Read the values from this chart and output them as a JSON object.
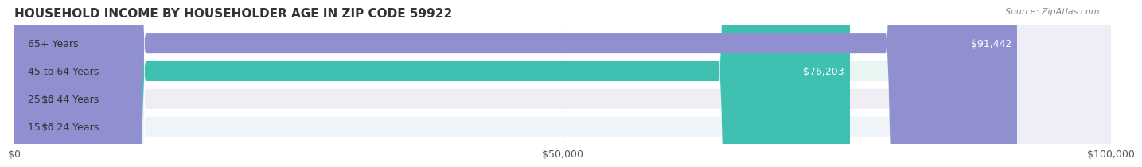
{
  "title": "HOUSEHOLD INCOME BY HOUSEHOLDER AGE IN ZIP CODE 59922",
  "source_text": "Source: ZipAtlas.com",
  "categories": [
    "15 to 24 Years",
    "25 to 44 Years",
    "45 to 64 Years",
    "65+ Years"
  ],
  "values": [
    0,
    0,
    76203,
    91442
  ],
  "labels": [
    "$0",
    "$0",
    "$76,203",
    "$91,442"
  ],
  "bar_colors": [
    "#7ec8e3",
    "#c9a0dc",
    "#40c0b0",
    "#9090d0"
  ],
  "bar_bg_colors": [
    "#eef4f8",
    "#f0edf5",
    "#e8f5f3",
    "#edeef8"
  ],
  "xlim": [
    0,
    100000
  ],
  "xticks": [
    0,
    50000,
    100000
  ],
  "xticklabels": [
    "$0",
    "$50,000",
    "$100,000"
  ],
  "title_fontsize": 11,
  "source_fontsize": 8,
  "label_fontsize": 9,
  "tick_fontsize": 9,
  "category_fontsize": 9,
  "background_color": "#ffffff",
  "grid_color": "#cccccc"
}
